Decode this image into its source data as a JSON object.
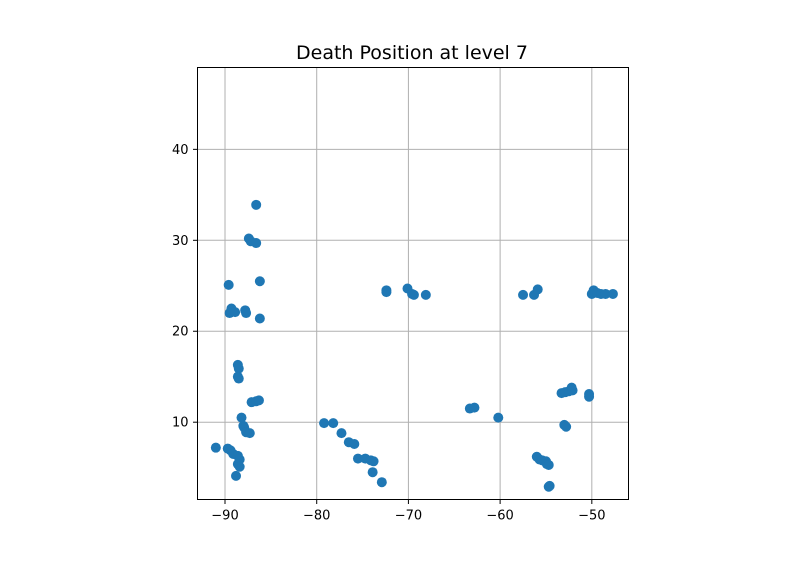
{
  "chart_data": {
    "type": "scatter",
    "title": "Death Position at level 7",
    "xlabel": "",
    "ylabel": "",
    "xlim": [
      -93.0,
      -46.0
    ],
    "ylim": [
      1.5,
      49.0
    ],
    "xticks": [
      -90,
      -80,
      -70,
      -60,
      -50
    ],
    "yticks": [
      10,
      20,
      30,
      40
    ],
    "xtick_labels": [
      "−90",
      "−80",
      "−70",
      "−60",
      "−50"
    ],
    "ytick_labels": [
      "10",
      "20",
      "30",
      "40"
    ],
    "grid": true,
    "marker_color": "#1f77b4",
    "series": [
      {
        "points": [
          [
            -86.6,
            33.9
          ],
          [
            -87.4,
            30.2
          ],
          [
            -87.2,
            29.9
          ],
          [
            -86.6,
            29.7
          ],
          [
            -86.2,
            25.5
          ],
          [
            -89.6,
            25.1
          ],
          [
            -89.3,
            22.5
          ],
          [
            -89.5,
            22.0
          ],
          [
            -88.9,
            22.1
          ],
          [
            -87.8,
            22.3
          ],
          [
            -87.7,
            22.0
          ],
          [
            -86.2,
            21.4
          ],
          [
            -88.6,
            16.3
          ],
          [
            -88.5,
            15.9
          ],
          [
            -88.6,
            15.0
          ],
          [
            -88.5,
            14.8
          ],
          [
            -87.1,
            12.2
          ],
          [
            -86.6,
            12.3
          ],
          [
            -86.3,
            12.4
          ],
          [
            -88.2,
            10.5
          ],
          [
            -88.0,
            9.6
          ],
          [
            -87.9,
            9.4
          ],
          [
            -87.7,
            8.9
          ],
          [
            -87.3,
            8.8
          ],
          [
            -91.0,
            7.2
          ],
          [
            -89.7,
            7.1
          ],
          [
            -89.4,
            6.9
          ],
          [
            -89.1,
            6.5
          ],
          [
            -88.6,
            6.3
          ],
          [
            -88.4,
            5.9
          ],
          [
            -88.6,
            5.4
          ],
          [
            -88.4,
            5.1
          ],
          [
            -88.8,
            4.1
          ],
          [
            -79.2,
            9.9
          ],
          [
            -78.2,
            9.9
          ],
          [
            -77.3,
            8.8
          ],
          [
            -76.5,
            7.8
          ],
          [
            -75.9,
            7.6
          ],
          [
            -75.5,
            6.0
          ],
          [
            -74.7,
            6.0
          ],
          [
            -74.1,
            5.8
          ],
          [
            -73.8,
            5.7
          ],
          [
            -73.9,
            4.5
          ],
          [
            -72.9,
            3.4
          ],
          [
            -72.4,
            24.5
          ],
          [
            -72.4,
            24.3
          ],
          [
            -70.1,
            24.7
          ],
          [
            -69.6,
            24.1
          ],
          [
            -69.4,
            24.0
          ],
          [
            -68.1,
            24.0
          ],
          [
            -63.3,
            11.5
          ],
          [
            -62.8,
            11.6
          ],
          [
            -60.2,
            10.5
          ],
          [
            -57.5,
            24.0
          ],
          [
            -56.3,
            24.0
          ],
          [
            -55.9,
            24.6
          ],
          [
            -56.0,
            6.2
          ],
          [
            -55.7,
            5.9
          ],
          [
            -55.4,
            5.8
          ],
          [
            -55.0,
            5.7
          ],
          [
            -54.9,
            5.4
          ],
          [
            -54.7,
            5.3
          ],
          [
            -54.6,
            3.0
          ],
          [
            -54.7,
            2.9
          ],
          [
            -53.3,
            13.2
          ],
          [
            -52.9,
            13.3
          ],
          [
            -52.5,
            13.4
          ],
          [
            -52.2,
            13.8
          ],
          [
            -52.1,
            13.5
          ],
          [
            -53.0,
            9.7
          ],
          [
            -52.8,
            9.5
          ],
          [
            -50.3,
            13.1
          ],
          [
            -50.3,
            12.8
          ],
          [
            -50.0,
            24.1
          ],
          [
            -49.8,
            24.5
          ],
          [
            -49.4,
            24.2
          ],
          [
            -49.0,
            24.1
          ],
          [
            -48.5,
            24.1
          ],
          [
            -47.7,
            24.1
          ]
        ]
      }
    ]
  }
}
